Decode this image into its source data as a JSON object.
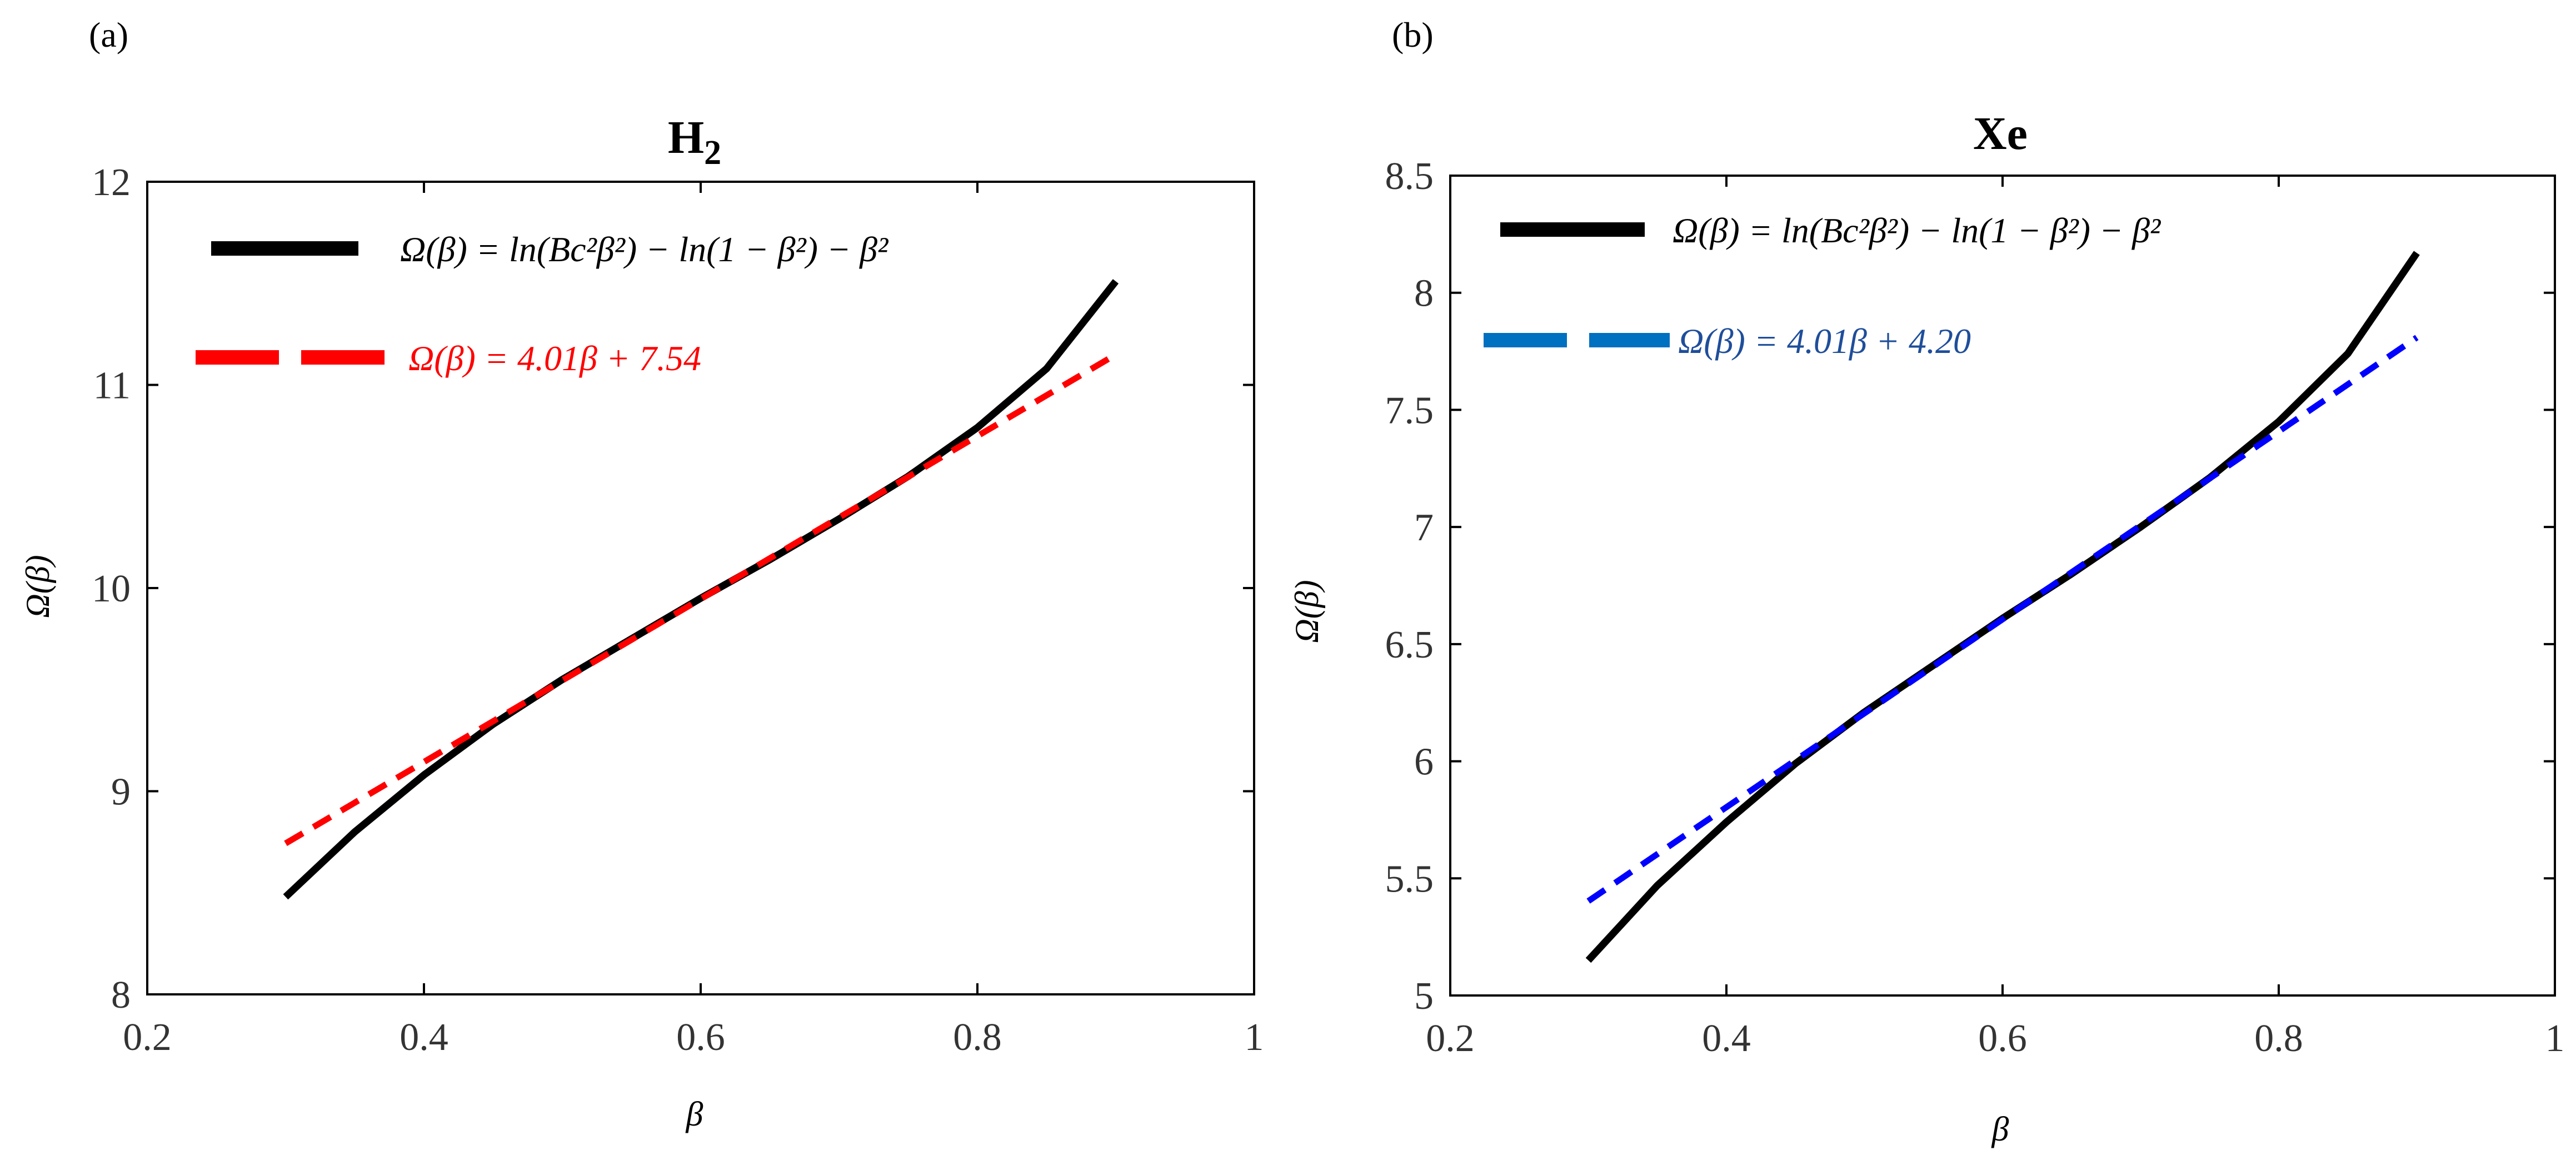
{
  "chart_data": [
    {
      "panel_label": "(a)",
      "type": "line",
      "title_main": "H",
      "title_sub": "2",
      "xlabel": "β",
      "ylabel": "Ω(β)",
      "xlim": [
        0.2,
        1
      ],
      "ylim": [
        8,
        12
      ],
      "xticks": [
        0.2,
        0.4,
        0.6,
        0.8,
        1
      ],
      "xtick_labels": [
        "0.2",
        "0.4",
        "0.6",
        "0.8",
        "1"
      ],
      "yticks": [
        8,
        9,
        10,
        11,
        12
      ],
      "ytick_labels": [
        "8",
        "9",
        "10",
        "11",
        "12"
      ],
      "legend_position": "top-left",
      "series": [
        {
          "name": "Ω(β) = ln(Bc²β²) − ln(1 − β²) − β²",
          "style": "solid",
          "color": "#000000",
          "legend_color": "#000000",
          "x": [
            0.3,
            0.35,
            0.4,
            0.45,
            0.5,
            0.55,
            0.6,
            0.65,
            0.7,
            0.75,
            0.8,
            0.85,
            0.9
          ],
          "y": [
            8.48,
            8.8,
            9.08,
            9.33,
            9.55,
            9.75,
            9.95,
            10.14,
            10.34,
            10.55,
            10.79,
            11.08,
            11.51
          ]
        },
        {
          "name": "Ω(β) = 4.01β + 7.54",
          "style": "dashed",
          "color": "#ff0000",
          "legend_color": "#ff0000",
          "x": [
            0.3,
            0.9
          ],
          "y": [
            8.743,
            11.149
          ]
        }
      ]
    },
    {
      "panel_label": "(b)",
      "type": "line",
      "title_main": "Xe",
      "title_sub": "",
      "xlabel": "β",
      "ylabel": "Ω(β)",
      "xlim": [
        0.2,
        1
      ],
      "ylim": [
        5,
        8.5
      ],
      "xticks": [
        0.2,
        0.4,
        0.6,
        0.8,
        1
      ],
      "xtick_labels": [
        "0.2",
        "0.4",
        "0.6",
        "0.8",
        "1"
      ],
      "yticks": [
        5,
        5.5,
        6,
        6.5,
        7,
        7.5,
        8,
        8.5
      ],
      "ytick_labels": [
        "5",
        "5.5",
        "6",
        "6.5",
        "7",
        "7.5",
        "8",
        "8.5"
      ],
      "legend_position": "top-left",
      "series": [
        {
          "name": "Ω(β) = ln(Bc²β²) − ln(1 − β²) − β²",
          "style": "solid",
          "color": "#000000",
          "legend_color": "#000000",
          "x": [
            0.3,
            0.35,
            0.4,
            0.45,
            0.5,
            0.55,
            0.6,
            0.65,
            0.7,
            0.75,
            0.8,
            0.85,
            0.9
          ],
          "y": [
            5.15,
            5.47,
            5.74,
            5.99,
            6.21,
            6.41,
            6.61,
            6.8,
            7.0,
            7.21,
            7.45,
            7.74,
            8.17
          ]
        },
        {
          "name": "Ω(β) = 4.01β + 4.20",
          "style": "dashed",
          "color": "#0000ff",
          "legend_color": "#0070c0",
          "x": [
            0.3,
            0.9
          ],
          "y": [
            5.403,
            7.809
          ]
        }
      ]
    }
  ]
}
